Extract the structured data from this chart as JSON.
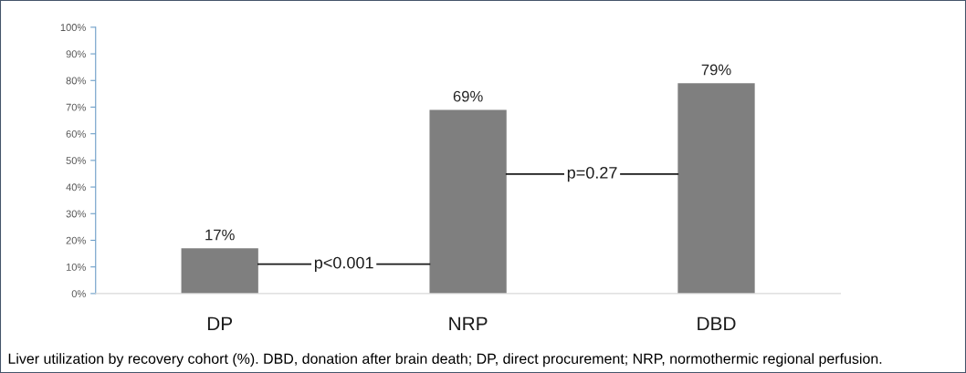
{
  "chart_data": {
    "type": "bar",
    "categories": [
      "DP",
      "NRP",
      "DBD"
    ],
    "values": [
      17,
      69,
      79
    ],
    "value_labels": [
      "17%",
      "69%",
      "79%"
    ],
    "color": "#7f7f7f",
    "ylim": [
      0,
      100
    ],
    "yticks": [
      {
        "value": 0,
        "label": "0%"
      },
      {
        "value": 10,
        "label": "10%"
      },
      {
        "value": 20,
        "label": "20%"
      },
      {
        "value": 30,
        "label": "30%"
      },
      {
        "value": 40,
        "label": "40%"
      },
      {
        "value": 50,
        "label": "50%"
      },
      {
        "value": 60,
        "label": "60%"
      },
      {
        "value": 70,
        "label": "70%"
      },
      {
        "value": 80,
        "label": "80%"
      },
      {
        "value": 90,
        "label": "90%"
      },
      {
        "value": 100,
        "label": "100%"
      }
    ],
    "grid": false,
    "legend": false,
    "annotations": [
      "p<0.001",
      "p=0.27",
      "Liver utilization by recovery cohort (%). DBD, donation after brain death; DP, direct procurement; NRP, normothermic regional perfusion."
    ]
  }
}
